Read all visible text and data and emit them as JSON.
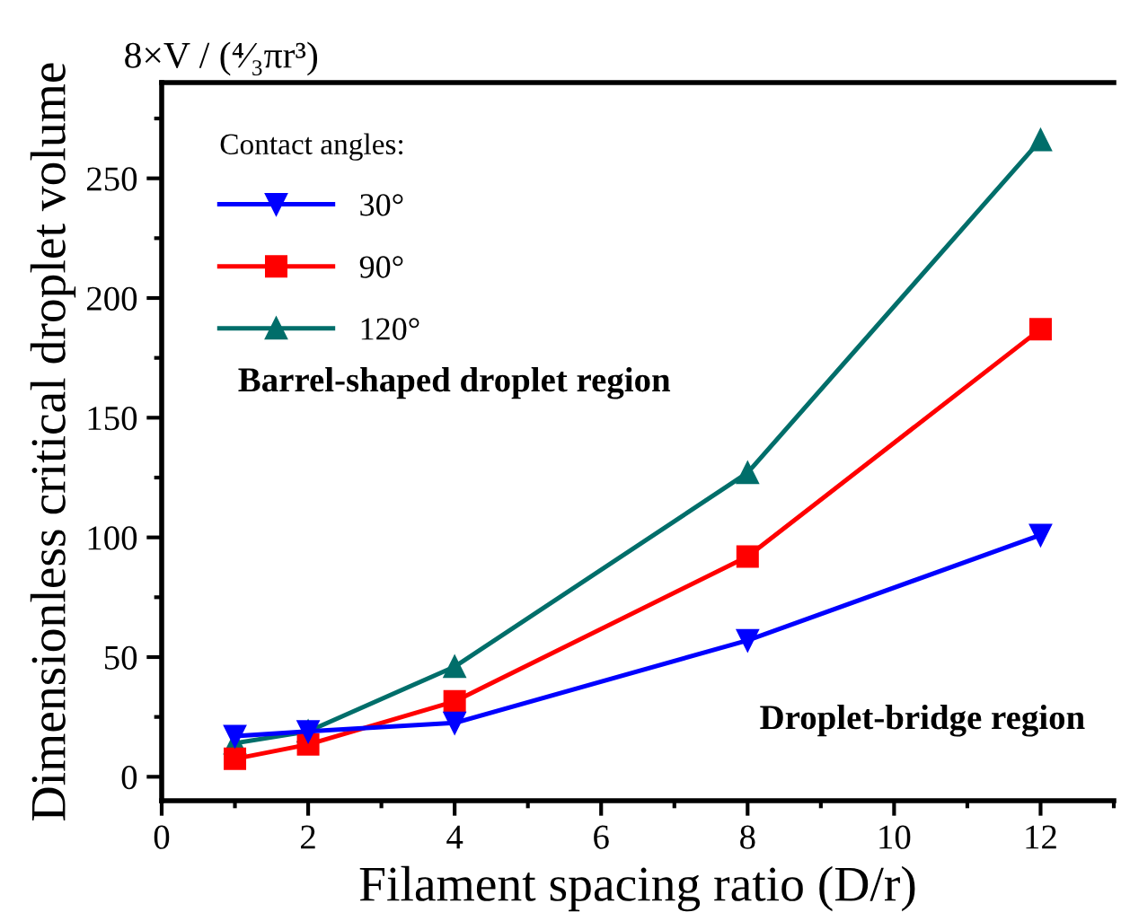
{
  "chart_data": {
    "type": "line",
    "title": "8×V / (⁴⁄₃πr³)",
    "xlabel": "Filament spacing ratio (D/r)",
    "ylabel": "Dimensionless critical droplet volume",
    "legend_title": "Contact angles:",
    "x": [
      1,
      2,
      4,
      8,
      12
    ],
    "series": [
      {
        "name": "30°",
        "color": "#0000ff",
        "marker": "triangle_down",
        "values": [
          17,
          19,
          22.5,
          57,
          101
        ]
      },
      {
        "name": "90°",
        "color": "#ff0000",
        "marker": "square",
        "values": [
          7.5,
          13.5,
          31.5,
          92,
          187
        ]
      },
      {
        "name": "120°",
        "color": "#006e6a",
        "marker": "triangle",
        "values": [
          14,
          19,
          46,
          127,
          266
        ]
      }
    ],
    "annotations": [
      "Barrel-shaped droplet region",
      "Droplet-bridge region"
    ],
    "xlim": [
      0,
      13
    ],
    "xticks": [
      0,
      2,
      4,
      6,
      8,
      10,
      12
    ],
    "ylim": [
      -10,
      290
    ],
    "yticks": [
      0,
      50,
      100,
      150,
      200,
      250
    ],
    "grid": false,
    "legend": "top left",
    "line_style": "solid"
  }
}
